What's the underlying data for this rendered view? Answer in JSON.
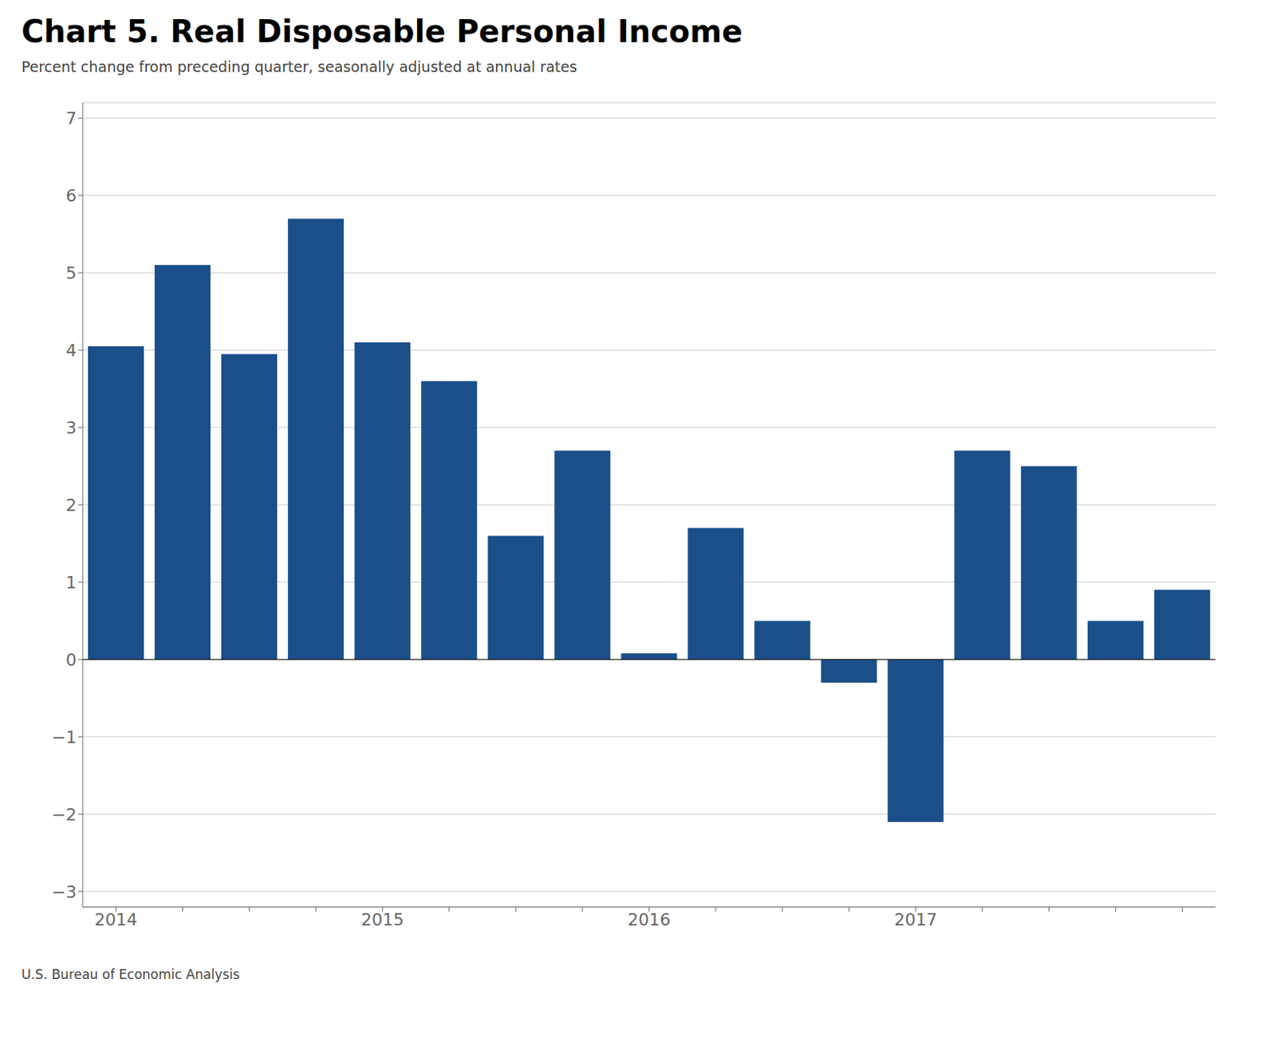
{
  "chart_data": {
    "type": "bar",
    "title": "Chart 5. Real Disposable Personal Income",
    "subtitle": "Percent change from preceding quarter, seasonally adjusted at annual rates",
    "annotations": [
      "U.S. Bureau of Economic Analysis"
    ],
    "categories": [
      "2014",
      null,
      null,
      null,
      "2015",
      null,
      null,
      null,
      "2016",
      null,
      null,
      null,
      "2017",
      null,
      null,
      null,
      null
    ],
    "values": [
      4.05,
      5.1,
      3.95,
      5.7,
      4.1,
      3.6,
      1.6,
      2.7,
      0.08,
      1.7,
      0.5,
      -0.3,
      -2.1,
      2.7,
      2.5,
      0.5,
      0.9
    ],
    "color": "#1B4F8A",
    "ylim": [
      -3.2,
      7.2
    ],
    "yticks": [
      {
        "value": -3,
        "label": "−3"
      },
      {
        "value": -2,
        "label": "−2"
      },
      {
        "value": -1,
        "label": "−1"
      },
      0,
      1,
      2,
      3,
      4,
      5,
      6,
      7
    ],
    "grid": true
  }
}
